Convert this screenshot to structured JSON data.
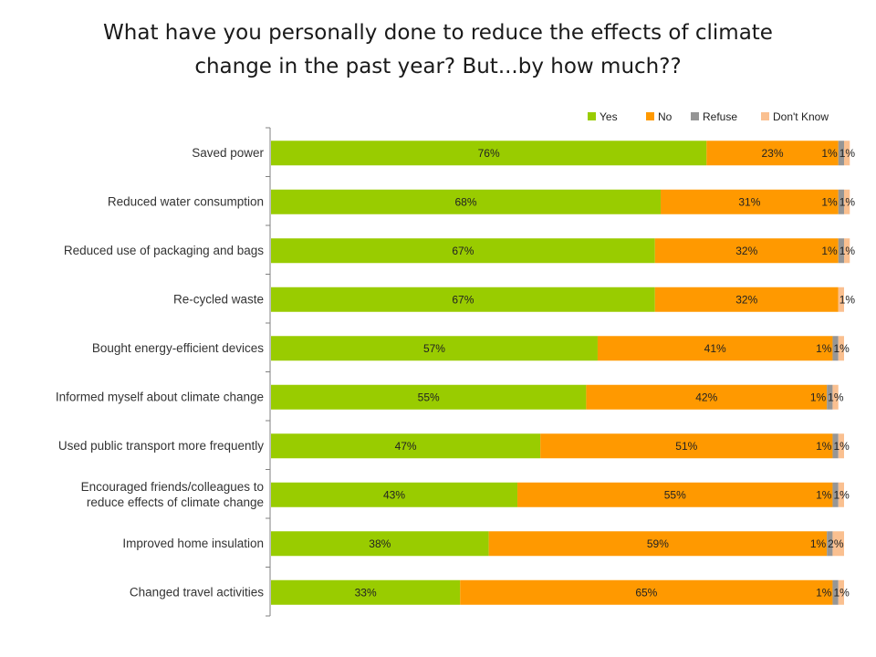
{
  "title": {
    "line1": "What have you personally done to reduce the effects of climate",
    "line2": "change in the past year?  But...by how much??"
  },
  "chart_data": {
    "type": "bar",
    "orientation": "horizontal",
    "stacked": "100%",
    "legend": "top-right",
    "categories": [
      "Saved power",
      "Reduced water consumption",
      "Reduced use of packaging and bags",
      "Re-cycled waste",
      "Bought energy-efficient devices",
      "Informed myself about climate change",
      "Used public transport more frequently",
      "Encouraged friends/colleagues to reduce effects of climate change",
      "Improved home insulation",
      "Changed travel activities"
    ],
    "series": [
      {
        "name": "Yes",
        "color": "#99cc00",
        "values": [
          76,
          68,
          67,
          67,
          57,
          55,
          47,
          43,
          38,
          33
        ]
      },
      {
        "name": "No",
        "color": "#ff9900",
        "values": [
          23,
          31,
          32,
          32,
          41,
          42,
          51,
          55,
          59,
          65
        ]
      },
      {
        "name": "Refuse",
        "color": "#969696",
        "values": [
          1,
          1,
          1,
          0,
          1,
          1,
          1,
          1,
          1,
          1
        ]
      },
      {
        "name": "Don't Know",
        "color": "#fac090",
        "values": [
          1,
          1,
          1,
          1,
          1,
          1,
          1,
          1,
          2,
          1
        ]
      }
    ],
    "value_labels": [
      [
        "76%",
        "23%",
        "1%",
        "1%"
      ],
      [
        "68%",
        "31%",
        "1%",
        "1%"
      ],
      [
        "67%",
        "32%",
        "1%",
        "1%"
      ],
      [
        "67%",
        "32%",
        "",
        "1%"
      ],
      [
        "57%",
        "41%",
        "1%",
        "1%"
      ],
      [
        "55%",
        "42%",
        "1%",
        "1%"
      ],
      [
        "47%",
        "51%",
        "1%",
        "1%"
      ],
      [
        "43%",
        "55%",
        "1%",
        "1%"
      ],
      [
        "38%",
        "59%",
        "1%",
        "2%"
      ],
      [
        "33%",
        "65%",
        "1%",
        "1%"
      ]
    ],
    "xlim": [
      0,
      100
    ]
  }
}
